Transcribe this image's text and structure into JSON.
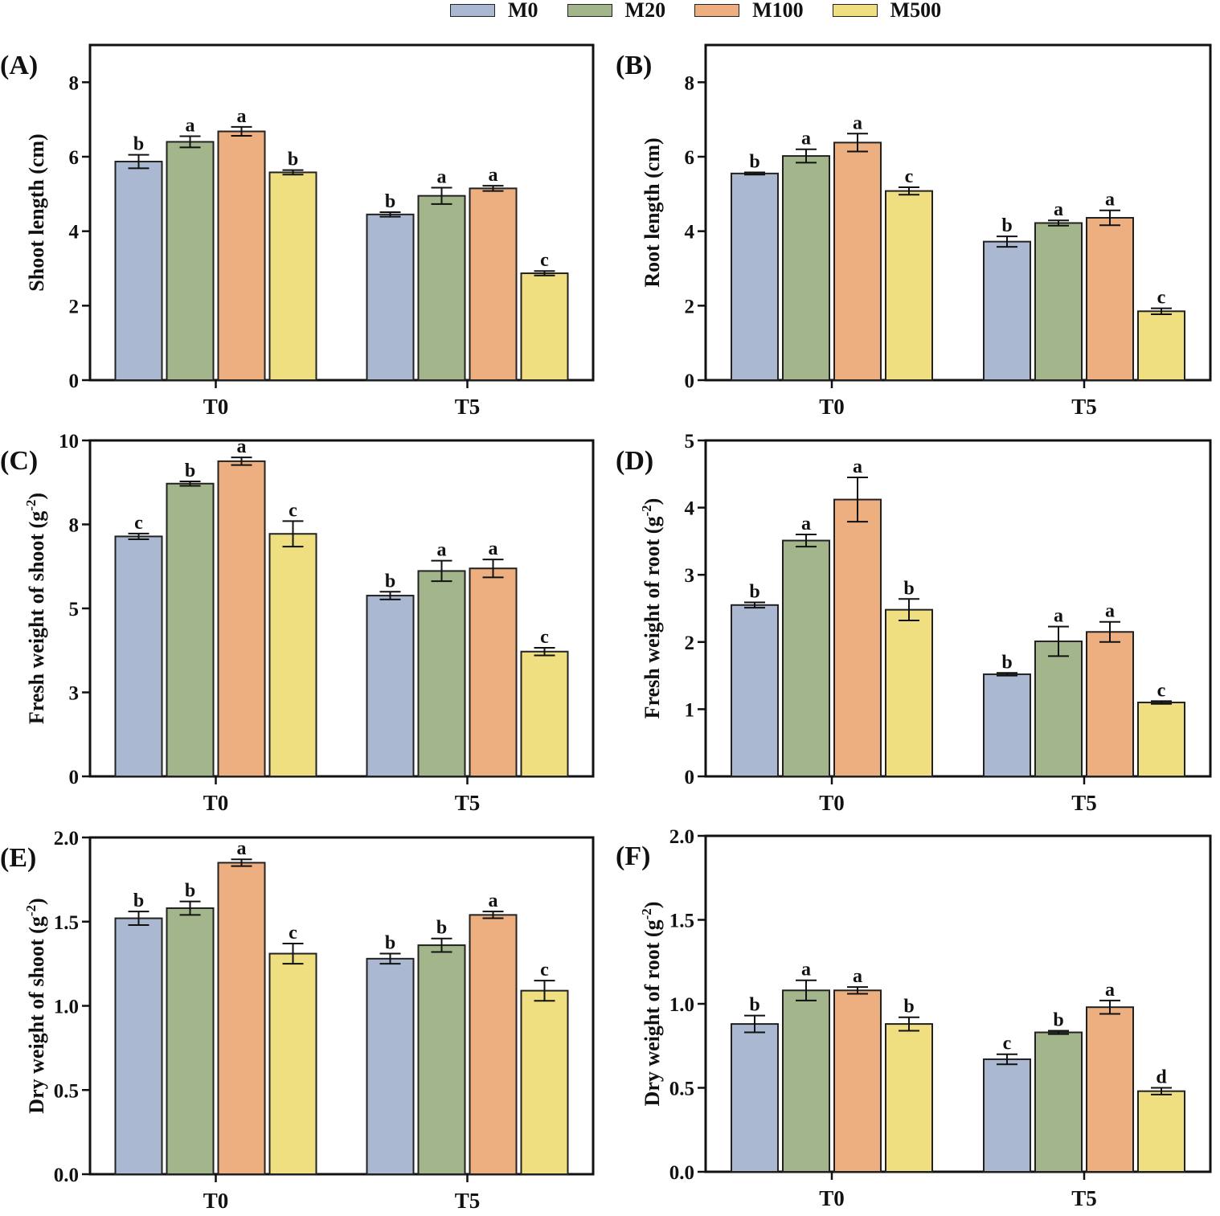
{
  "legend": [
    {
      "name": "M0",
      "color": "#AAB8D2"
    },
    {
      "name": "M20",
      "color": "#A3B58A"
    },
    {
      "name": "M100",
      "color": "#EDAF7F"
    },
    {
      "name": "M500",
      "color": "#F0DF80"
    }
  ],
  "chart_data": [
    {
      "type": "bar",
      "panel_label": "(A)",
      "ylabel": "Shoot length (cm)",
      "ylabel_sup": "",
      "ylim": [
        0,
        9
      ],
      "yticks": [
        "0",
        "2",
        "4",
        "6",
        "8"
      ],
      "ytick_values": [
        0,
        2,
        4,
        6,
        8
      ],
      "categories": [
        "T0",
        "T5"
      ],
      "series": [
        {
          "name": "M0",
          "values": [
            5.87,
            4.45
          ],
          "errors": [
            0.18,
            0.06
          ],
          "letters": [
            "b",
            "b"
          ]
        },
        {
          "name": "M20",
          "values": [
            6.4,
            4.95
          ],
          "errors": [
            0.15,
            0.22
          ],
          "letters": [
            "a",
            "a"
          ]
        },
        {
          "name": "M100",
          "values": [
            6.68,
            5.15
          ],
          "errors": [
            0.12,
            0.07
          ],
          "letters": [
            "a",
            "a"
          ]
        },
        {
          "name": "M500",
          "values": [
            5.58,
            2.87
          ],
          "errors": [
            0.06,
            0.06
          ],
          "letters": [
            "b",
            "c"
          ]
        }
      ]
    },
    {
      "type": "bar",
      "panel_label": "(B)",
      "ylabel": "Root length (cm)",
      "ylabel_sup": "",
      "ylim": [
        0,
        9
      ],
      "yticks": [
        "0",
        "2",
        "4",
        "6",
        "8"
      ],
      "ytick_values": [
        0,
        2,
        4,
        6,
        8
      ],
      "categories": [
        "T0",
        "T5"
      ],
      "series": [
        {
          "name": "M0",
          "values": [
            5.55,
            3.72
          ],
          "errors": [
            0.03,
            0.14
          ],
          "letters": [
            "b",
            "b"
          ]
        },
        {
          "name": "M20",
          "values": [
            6.02,
            4.22
          ],
          "errors": [
            0.18,
            0.07
          ],
          "letters": [
            "a",
            "a"
          ]
        },
        {
          "name": "M100",
          "values": [
            6.38,
            4.36
          ],
          "errors": [
            0.24,
            0.2
          ],
          "letters": [
            "a",
            "a"
          ]
        },
        {
          "name": "M500",
          "values": [
            5.08,
            1.85
          ],
          "errors": [
            0.1,
            0.08
          ],
          "letters": [
            "c",
            "c"
          ]
        }
      ]
    },
    {
      "type": "bar",
      "panel_label": "(C)",
      "ylabel": "Fresh weight of shoot (g",
      "ylabel_sup": "-2",
      "ylabel_suffix": ")",
      "ylim": [
        0,
        10.5
      ],
      "yticks": [
        "0",
        "3",
        "5",
        "8",
        "10"
      ],
      "ytick_values": [
        0,
        2.625,
        5.25,
        7.875,
        10.5
      ],
      "categories": [
        "T0",
        "T5"
      ],
      "series": [
        {
          "name": "M0",
          "values": [
            7.5,
            5.65
          ],
          "errors": [
            0.09,
            0.12
          ],
          "letters": [
            "c",
            "b"
          ]
        },
        {
          "name": "M20",
          "values": [
            9.15,
            6.42
          ],
          "errors": [
            0.07,
            0.32
          ],
          "letters": [
            "b",
            "a"
          ]
        },
        {
          "name": "M100",
          "values": [
            9.85,
            6.5
          ],
          "errors": [
            0.12,
            0.28
          ],
          "letters": [
            "a",
            "a"
          ]
        },
        {
          "name": "M500",
          "values": [
            7.58,
            3.9
          ],
          "errors": [
            0.4,
            0.12
          ],
          "letters": [
            "c",
            "c"
          ]
        }
      ]
    },
    {
      "type": "bar",
      "panel_label": "(D)",
      "ylabel": "Fresh weight of root (g",
      "ylabel_sup": "-2",
      "ylabel_suffix": ")",
      "ylim": [
        0,
        5
      ],
      "yticks": [
        "0",
        "1",
        "2",
        "3",
        "4",
        "5"
      ],
      "ytick_values": [
        0,
        1,
        2,
        3,
        4,
        5
      ],
      "categories": [
        "T0",
        "T5"
      ],
      "series": [
        {
          "name": "M0",
          "values": [
            2.55,
            1.52
          ],
          "errors": [
            0.04,
            0.02
          ],
          "letters": [
            "b",
            "b"
          ]
        },
        {
          "name": "M20",
          "values": [
            3.51,
            2.01
          ],
          "errors": [
            0.09,
            0.22
          ],
          "letters": [
            "a",
            "a"
          ]
        },
        {
          "name": "M100",
          "values": [
            4.12,
            2.15
          ],
          "errors": [
            0.33,
            0.15
          ],
          "letters": [
            "a",
            "a"
          ]
        },
        {
          "name": "M500",
          "values": [
            2.48,
            1.1
          ],
          "errors": [
            0.16,
            0.02
          ],
          "letters": [
            "b",
            "c"
          ]
        }
      ]
    },
    {
      "type": "bar",
      "panel_label": "(E)",
      "ylabel": "Dry weight of shoot (g",
      "ylabel_sup": "-2",
      "ylabel_suffix": ")",
      "ylim": [
        0,
        2.0
      ],
      "yticks": [
        "0.0",
        "0.5",
        "1.0",
        "1.5",
        "2.0"
      ],
      "ytick_values": [
        0,
        0.5,
        1.0,
        1.5,
        2.0
      ],
      "categories": [
        "T0",
        "T5"
      ],
      "series": [
        {
          "name": "M0",
          "values": [
            1.52,
            1.28
          ],
          "errors": [
            0.04,
            0.03
          ],
          "letters": [
            "b",
            "b"
          ]
        },
        {
          "name": "M20",
          "values": [
            1.58,
            1.36
          ],
          "errors": [
            0.04,
            0.04
          ],
          "letters": [
            "b",
            "b"
          ]
        },
        {
          "name": "M100",
          "values": [
            1.85,
            1.54
          ],
          "errors": [
            0.02,
            0.02
          ],
          "letters": [
            "a",
            "a"
          ]
        },
        {
          "name": "M500",
          "values": [
            1.31,
            1.09
          ],
          "errors": [
            0.06,
            0.06
          ],
          "letters": [
            "c",
            "c"
          ]
        }
      ]
    },
    {
      "type": "bar",
      "panel_label": "(F)",
      "ylabel": "Dry weight of root (g",
      "ylabel_sup": "-2",
      "ylabel_suffix": ")",
      "ylim": [
        0,
        2.0
      ],
      "yticks": [
        "0.0",
        "0.5",
        "1.0",
        "1.5",
        "2.0"
      ],
      "ytick_values": [
        0,
        0.5,
        1.0,
        1.5,
        2.0
      ],
      "categories": [
        "T0",
        "T5"
      ],
      "series": [
        {
          "name": "M0",
          "values": [
            0.88,
            0.67
          ],
          "errors": [
            0.05,
            0.03
          ],
          "letters": [
            "b",
            "c"
          ]
        },
        {
          "name": "M20",
          "values": [
            1.08,
            0.83
          ],
          "errors": [
            0.06,
            0.01
          ],
          "letters": [
            "a",
            "b"
          ]
        },
        {
          "name": "M100",
          "values": [
            1.08,
            0.98
          ],
          "errors": [
            0.02,
            0.04
          ],
          "letters": [
            "a",
            "a"
          ]
        },
        {
          "name": "M500",
          "values": [
            0.88,
            0.48
          ],
          "errors": [
            0.04,
            0.02
          ],
          "letters": [
            "b",
            "d"
          ]
        }
      ]
    }
  ]
}
